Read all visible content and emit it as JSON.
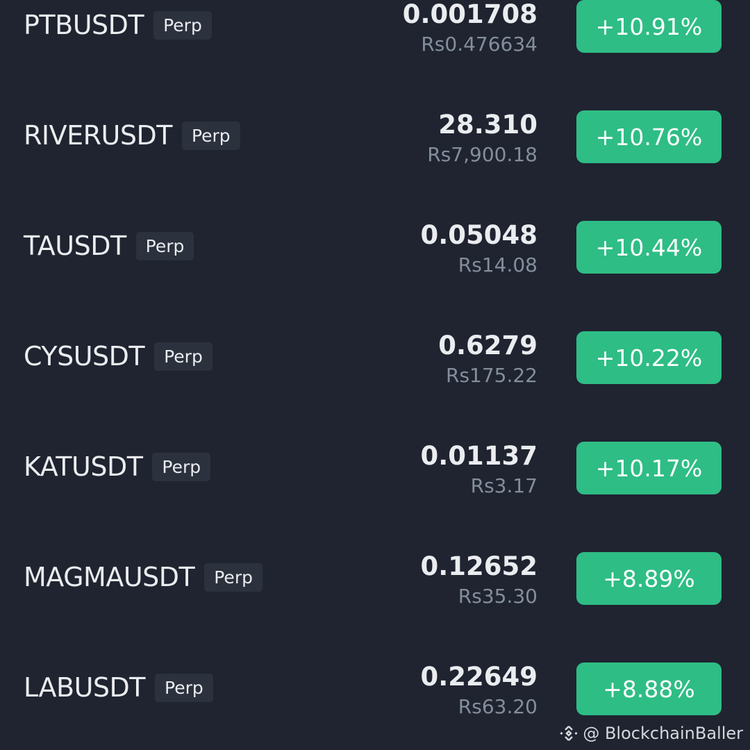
{
  "rows": [
    {
      "symbol": "PTBUSDT",
      "badge": "Perp",
      "price": "0.001708",
      "local_price": "Rs0.476634",
      "change": "+10.91%"
    },
    {
      "symbol": "RIVERUSDT",
      "badge": "Perp",
      "price": "28.310",
      "local_price": "Rs7,900.18",
      "change": "+10.76%"
    },
    {
      "symbol": "TAUSDT",
      "badge": "Perp",
      "price": "0.05048",
      "local_price": "Rs14.08",
      "change": "+10.44%"
    },
    {
      "symbol": "CYSUSDT",
      "badge": "Perp",
      "price": "0.6279",
      "local_price": "Rs175.22",
      "change": "+10.22%"
    },
    {
      "symbol": "KATUSDT",
      "badge": "Perp",
      "price": "0.01137",
      "local_price": "Rs3.17",
      "change": "+10.17%"
    },
    {
      "symbol": "MAGMAUSDT",
      "badge": "Perp",
      "price": "0.12652",
      "local_price": "Rs35.30",
      "change": "+8.89%"
    },
    {
      "symbol": "LABUSDT",
      "badge": "Perp",
      "price": "0.22649",
      "local_price": "Rs63.20",
      "change": "+8.88%"
    }
  ],
  "watermark": {
    "text": "@ BlockchainBaller",
    "icon": "binance-logo-icon"
  },
  "colors": {
    "background": "#1f2430",
    "positive": "#2ebd85",
    "muted": "#848e9c"
  }
}
